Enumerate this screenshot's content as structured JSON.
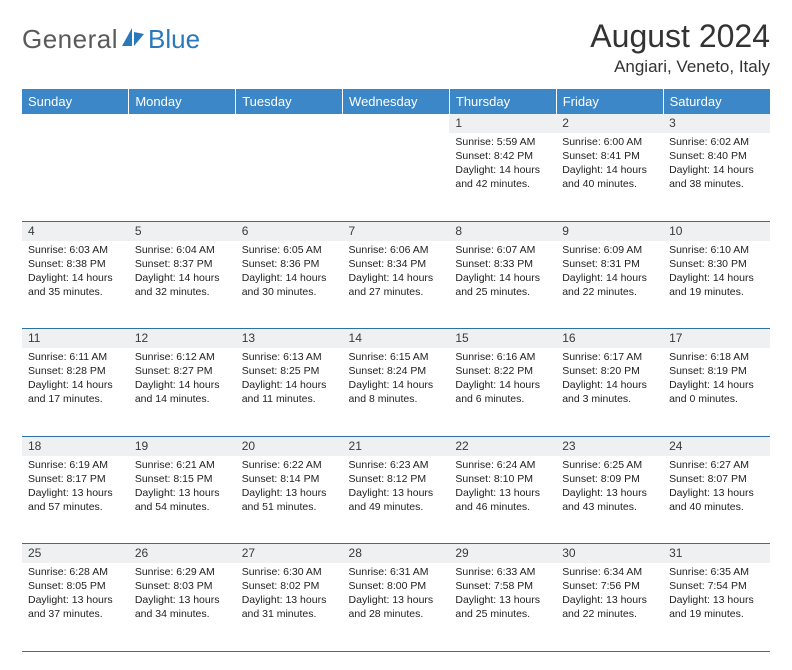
{
  "brand": {
    "text1": "General",
    "text2": "Blue"
  },
  "title": "August 2024",
  "location": "Angiari, Veneto, Italy",
  "colors": {
    "header_bg": "#3b87c8",
    "row_divider": "#2f6fa8",
    "daynum_bg": "#eef0f1",
    "brand_gray": "#5a5a5a",
    "brand_blue": "#2a79bd"
  },
  "weekdays": [
    "Sunday",
    "Monday",
    "Tuesday",
    "Wednesday",
    "Thursday",
    "Friday",
    "Saturday"
  ],
  "weeks": [
    [
      null,
      null,
      null,
      null,
      {
        "n": "1",
        "sunrise": "5:59 AM",
        "sunset": "8:42 PM",
        "dl1": "Daylight: 14 hours",
        "dl2": "and 42 minutes."
      },
      {
        "n": "2",
        "sunrise": "6:00 AM",
        "sunset": "8:41 PM",
        "dl1": "Daylight: 14 hours",
        "dl2": "and 40 minutes."
      },
      {
        "n": "3",
        "sunrise": "6:02 AM",
        "sunset": "8:40 PM",
        "dl1": "Daylight: 14 hours",
        "dl2": "and 38 minutes."
      }
    ],
    [
      {
        "n": "4",
        "sunrise": "6:03 AM",
        "sunset": "8:38 PM",
        "dl1": "Daylight: 14 hours",
        "dl2": "and 35 minutes."
      },
      {
        "n": "5",
        "sunrise": "6:04 AM",
        "sunset": "8:37 PM",
        "dl1": "Daylight: 14 hours",
        "dl2": "and 32 minutes."
      },
      {
        "n": "6",
        "sunrise": "6:05 AM",
        "sunset": "8:36 PM",
        "dl1": "Daylight: 14 hours",
        "dl2": "and 30 minutes."
      },
      {
        "n": "7",
        "sunrise": "6:06 AM",
        "sunset": "8:34 PM",
        "dl1": "Daylight: 14 hours",
        "dl2": "and 27 minutes."
      },
      {
        "n": "8",
        "sunrise": "6:07 AM",
        "sunset": "8:33 PM",
        "dl1": "Daylight: 14 hours",
        "dl2": "and 25 minutes."
      },
      {
        "n": "9",
        "sunrise": "6:09 AM",
        "sunset": "8:31 PM",
        "dl1": "Daylight: 14 hours",
        "dl2": "and 22 minutes."
      },
      {
        "n": "10",
        "sunrise": "6:10 AM",
        "sunset": "8:30 PM",
        "dl1": "Daylight: 14 hours",
        "dl2": "and 19 minutes."
      }
    ],
    [
      {
        "n": "11",
        "sunrise": "6:11 AM",
        "sunset": "8:28 PM",
        "dl1": "Daylight: 14 hours",
        "dl2": "and 17 minutes."
      },
      {
        "n": "12",
        "sunrise": "6:12 AM",
        "sunset": "8:27 PM",
        "dl1": "Daylight: 14 hours",
        "dl2": "and 14 minutes."
      },
      {
        "n": "13",
        "sunrise": "6:13 AM",
        "sunset": "8:25 PM",
        "dl1": "Daylight: 14 hours",
        "dl2": "and 11 minutes."
      },
      {
        "n": "14",
        "sunrise": "6:15 AM",
        "sunset": "8:24 PM",
        "dl1": "Daylight: 14 hours",
        "dl2": "and 8 minutes."
      },
      {
        "n": "15",
        "sunrise": "6:16 AM",
        "sunset": "8:22 PM",
        "dl1": "Daylight: 14 hours",
        "dl2": "and 6 minutes."
      },
      {
        "n": "16",
        "sunrise": "6:17 AM",
        "sunset": "8:20 PM",
        "dl1": "Daylight: 14 hours",
        "dl2": "and 3 minutes."
      },
      {
        "n": "17",
        "sunrise": "6:18 AM",
        "sunset": "8:19 PM",
        "dl1": "Daylight: 14 hours",
        "dl2": "and 0 minutes."
      }
    ],
    [
      {
        "n": "18",
        "sunrise": "6:19 AM",
        "sunset": "8:17 PM",
        "dl1": "Daylight: 13 hours",
        "dl2": "and 57 minutes."
      },
      {
        "n": "19",
        "sunrise": "6:21 AM",
        "sunset": "8:15 PM",
        "dl1": "Daylight: 13 hours",
        "dl2": "and 54 minutes."
      },
      {
        "n": "20",
        "sunrise": "6:22 AM",
        "sunset": "8:14 PM",
        "dl1": "Daylight: 13 hours",
        "dl2": "and 51 minutes."
      },
      {
        "n": "21",
        "sunrise": "6:23 AM",
        "sunset": "8:12 PM",
        "dl1": "Daylight: 13 hours",
        "dl2": "and 49 minutes."
      },
      {
        "n": "22",
        "sunrise": "6:24 AM",
        "sunset": "8:10 PM",
        "dl1": "Daylight: 13 hours",
        "dl2": "and 46 minutes."
      },
      {
        "n": "23",
        "sunrise": "6:25 AM",
        "sunset": "8:09 PM",
        "dl1": "Daylight: 13 hours",
        "dl2": "and 43 minutes."
      },
      {
        "n": "24",
        "sunrise": "6:27 AM",
        "sunset": "8:07 PM",
        "dl1": "Daylight: 13 hours",
        "dl2": "and 40 minutes."
      }
    ],
    [
      {
        "n": "25",
        "sunrise": "6:28 AM",
        "sunset": "8:05 PM",
        "dl1": "Daylight: 13 hours",
        "dl2": "and 37 minutes."
      },
      {
        "n": "26",
        "sunrise": "6:29 AM",
        "sunset": "8:03 PM",
        "dl1": "Daylight: 13 hours",
        "dl2": "and 34 minutes."
      },
      {
        "n": "27",
        "sunrise": "6:30 AM",
        "sunset": "8:02 PM",
        "dl1": "Daylight: 13 hours",
        "dl2": "and 31 minutes."
      },
      {
        "n": "28",
        "sunrise": "6:31 AM",
        "sunset": "8:00 PM",
        "dl1": "Daylight: 13 hours",
        "dl2": "and 28 minutes."
      },
      {
        "n": "29",
        "sunrise": "6:33 AM",
        "sunset": "7:58 PM",
        "dl1": "Daylight: 13 hours",
        "dl2": "and 25 minutes."
      },
      {
        "n": "30",
        "sunrise": "6:34 AM",
        "sunset": "7:56 PM",
        "dl1": "Daylight: 13 hours",
        "dl2": "and 22 minutes."
      },
      {
        "n": "31",
        "sunrise": "6:35 AM",
        "sunset": "7:54 PM",
        "dl1": "Daylight: 13 hours",
        "dl2": "and 19 minutes."
      }
    ]
  ]
}
